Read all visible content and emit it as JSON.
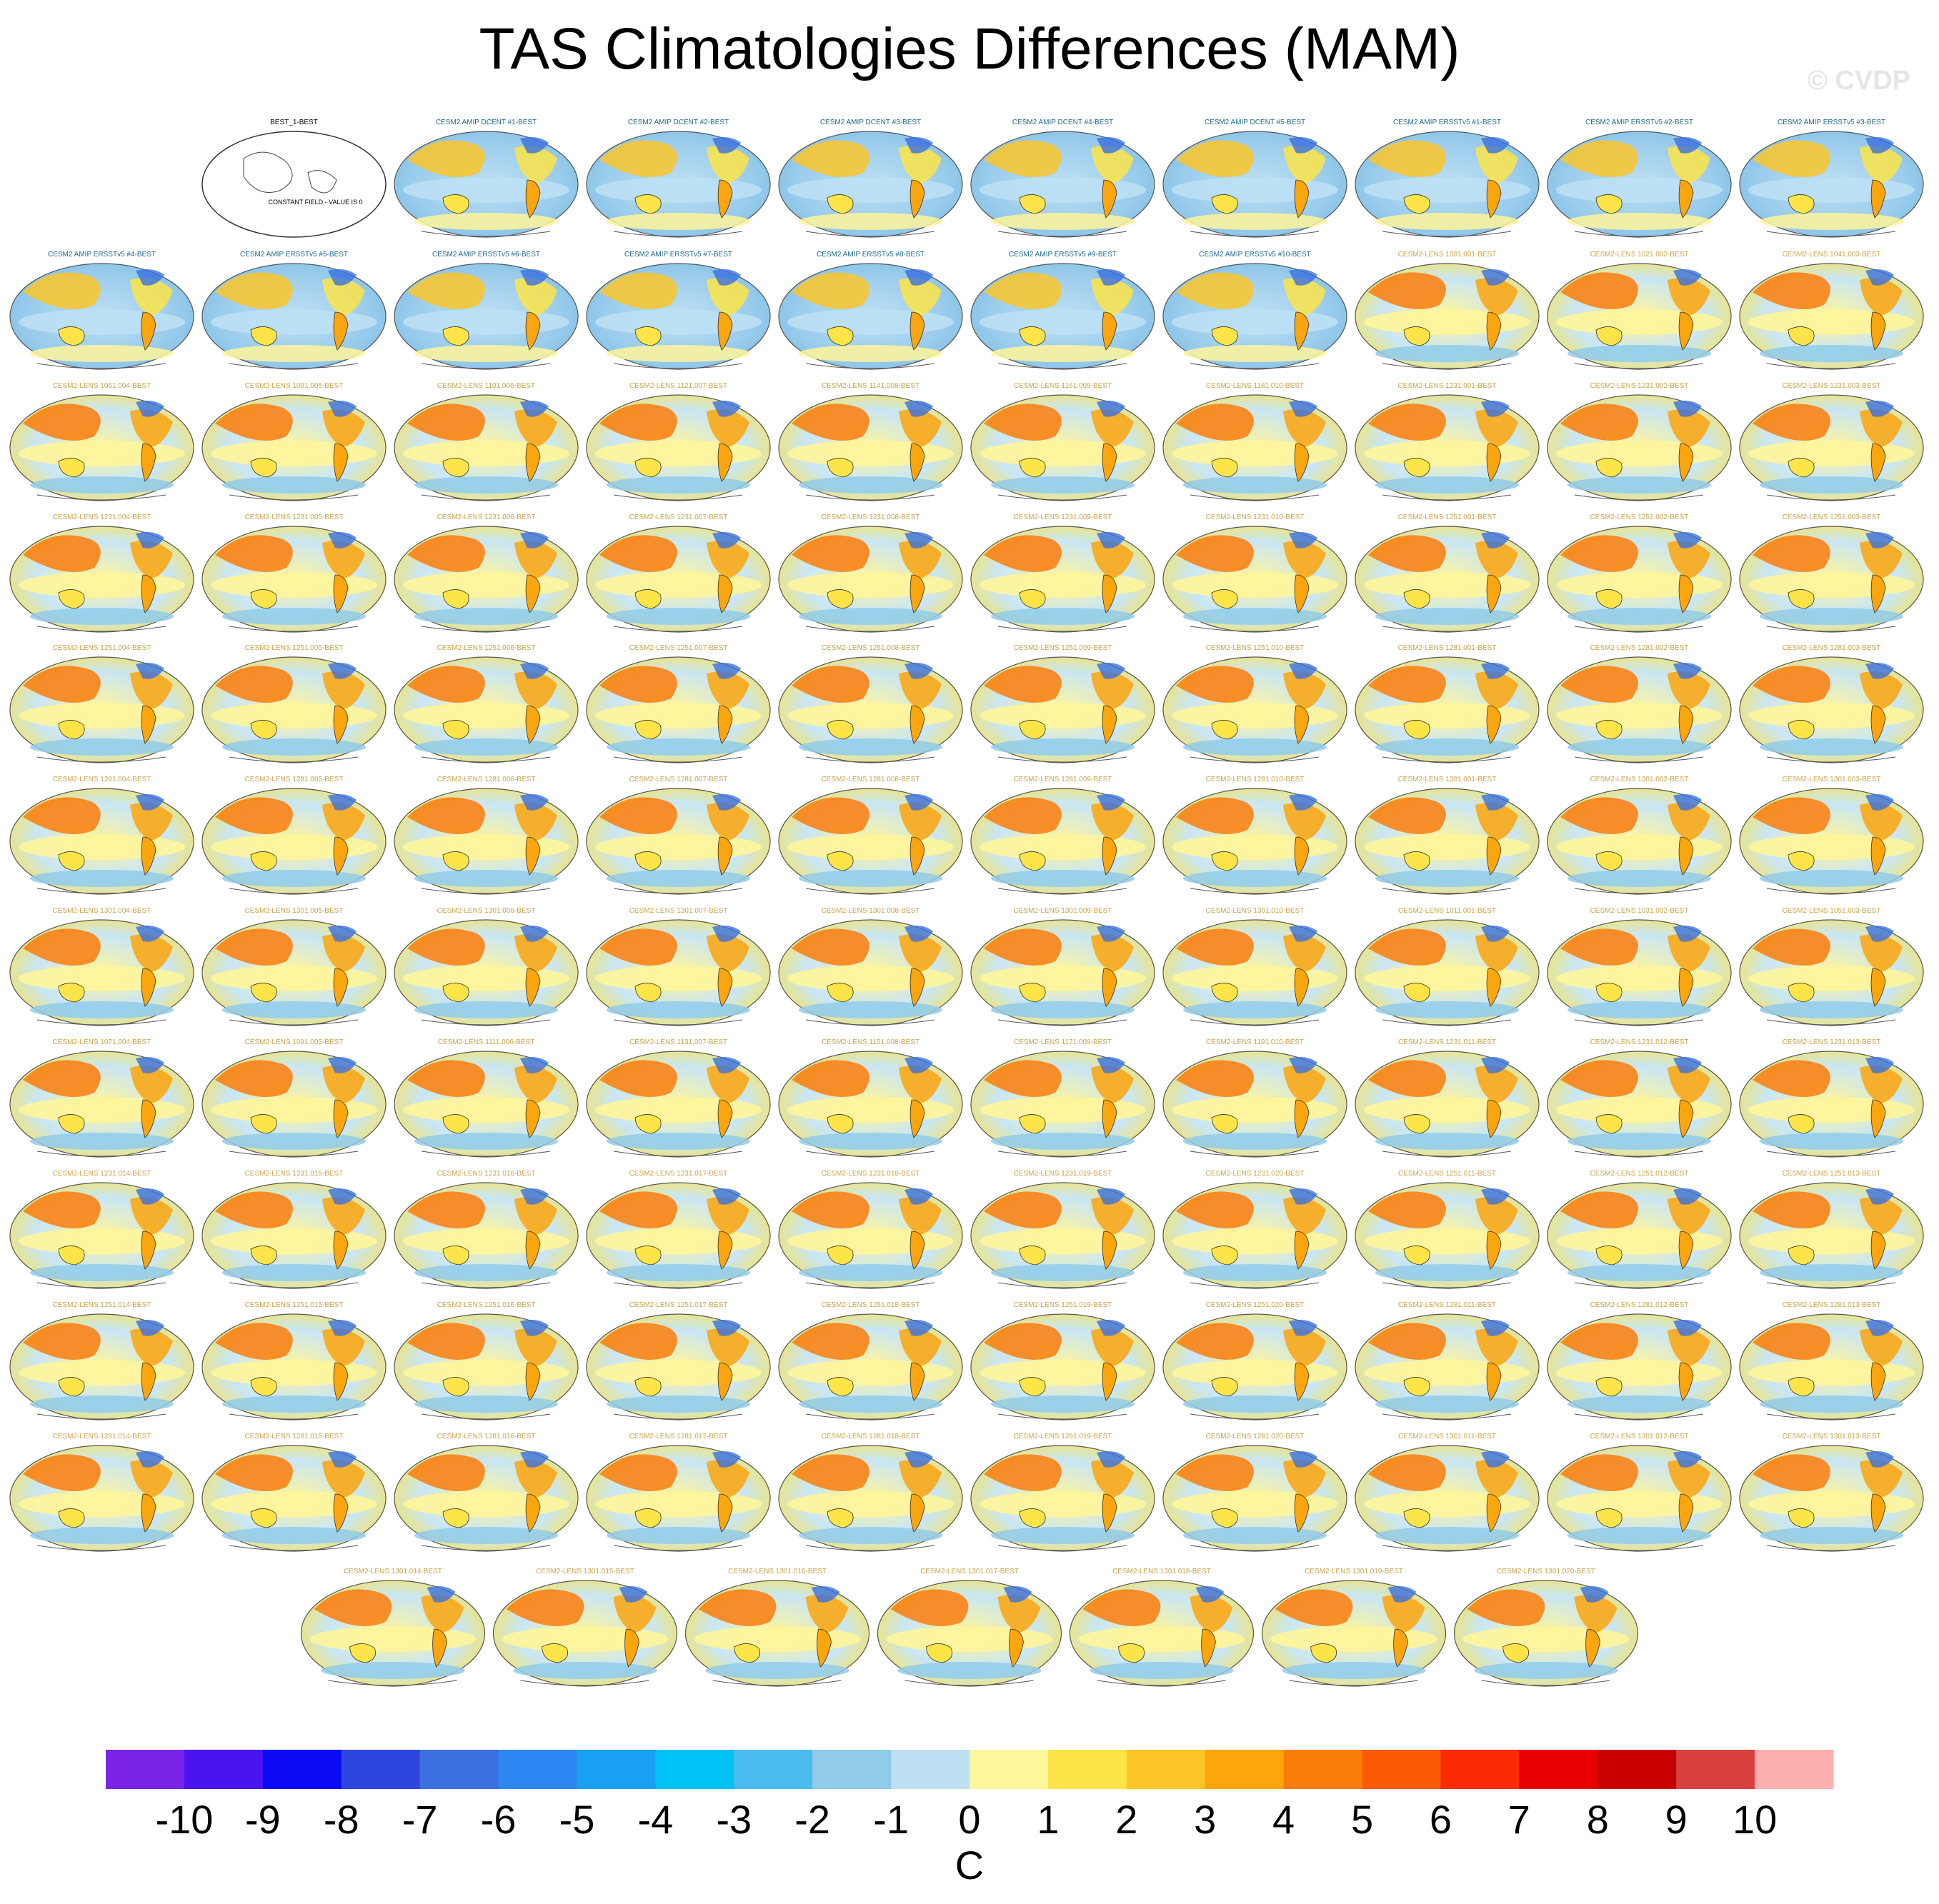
{
  "title": "TAS Climatologies Differences (MAM)",
  "copyright": "© CVDP",
  "chart_data": {
    "type": "heatmap",
    "title": "TAS Climatologies Differences (MAM)",
    "variable": "TAS",
    "season": "MAM",
    "units": "C",
    "colorbar": {
      "levels": [
        -10,
        -9,
        -8,
        -7,
        -6,
        -5,
        -4,
        -3,
        -2,
        -1,
        0,
        1,
        2,
        3,
        4,
        5,
        6,
        7,
        8,
        9,
        10
      ],
      "tick_labels": [
        "-10",
        "-9",
        "-8",
        "-7",
        "-6",
        "-5",
        "-4",
        "-3",
        "-2",
        "-1",
        "0",
        "1",
        "2",
        "3",
        "4",
        "5",
        "6",
        "7",
        "8",
        "9",
        "10"
      ],
      "colors": [
        "#7b24e8",
        "#4a14f0",
        "#0a0af5",
        "#2e46e0",
        "#3a70e0",
        "#2d86f2",
        "#1aa0f5",
        "#00c2f5",
        "#4cbcf0",
        "#90cbea",
        "#bde0f4",
        "#fff59a",
        "#fde448",
        "#fcc62a",
        "#fca50c",
        "#fb7d0a",
        "#fa5a04",
        "#fa2a02",
        "#e80000",
        "#c80000",
        "#d84040",
        "#fdb0b0"
      ],
      "label": "C"
    },
    "reference_panel": {
      "title": "BEST_1-BEST",
      "annotation": "CONSTANT FIELD - VALUE IS 0"
    },
    "panels": [
      "CESM2 AMIP DCENT #1-BEST",
      "CESM2 AMIP DCENT #2-BEST",
      "CESM2 AMIP DCENT #3-BEST",
      "CESM2 AMIP DCENT #4-BEST",
      "CESM2 AMIP DCENT #5-BEST",
      "CESM2 AMIP ERSSTv5 #1-BEST",
      "CESM2 AMIP ERSSTv5 #2-BEST",
      "CESM2 AMIP ERSSTv5 #3-BEST",
      "CESM2 AMIP ERSSTv5 #4-BEST",
      "CESM2 AMIP ERSSTv5 #5-BEST",
      "CESM2 AMIP ERSSTv5 #6-BEST",
      "CESM2 AMIP ERSSTv5 #7-BEST",
      "CESM2 AMIP ERSSTv5 #8-BEST",
      "CESM2 AMIP ERSSTv5 #9-BEST",
      "CESM2 AMIP ERSSTv5 #10-BEST",
      "CESM2-LENS 1001.001-BEST",
      "CESM2-LENS 1021.002-BEST",
      "CESM2-LENS 1041.003-BEST",
      "CESM2-LENS 1061.004-BEST",
      "CESM2-LENS 1081.005-BEST",
      "CESM2-LENS 1101.006-BEST",
      "CESM2-LENS 1121.007-BEST",
      "CESM2-LENS 1141.008-BEST",
      "CESM2-LENS 1161.009-BEST",
      "CESM2-LENS 1181.010-BEST",
      "CESM2-LENS 1231.001-BEST",
      "CESM2-LENS 1231.002-BEST",
      "CESM2-LENS 1231.003-BEST",
      "CESM2-LENS 1231.004-BEST",
      "CESM2-LENS 1231.005-BEST",
      "CESM2-LENS 1231.006-BEST",
      "CESM2-LENS 1231.007-BEST",
      "CESM2-LENS 1231.008-BEST",
      "CESM2-LENS 1231.009-BEST",
      "CESM2-LENS 1231.010-BEST",
      "CESM2-LENS 1251.001-BEST",
      "CESM2-LENS 1251.002-BEST",
      "CESM2-LENS 1251.003-BEST",
      "CESM2-LENS 1251.004-BEST",
      "CESM2-LENS 1251.005-BEST",
      "CESM2-LENS 1251.006-BEST",
      "CESM2-LENS 1251.007-BEST",
      "CESM2-LENS 1251.008-BEST",
      "CESM2-LENS 1251.009-BEST",
      "CESM2-LENS 1251.010-BEST",
      "CESM2-LENS 1281.001-BEST",
      "CESM2-LENS 1281.002-BEST",
      "CESM2-LENS 1281.003-BEST",
      "CESM2-LENS 1281.004-BEST",
      "CESM2-LENS 1281.005-BEST",
      "CESM2-LENS 1281.006-BEST",
      "CESM2-LENS 1281.007-BEST",
      "CESM2-LENS 1281.008-BEST",
      "CESM2-LENS 1281.009-BEST",
      "CESM2-LENS 1281.010-BEST",
      "CESM2-LENS 1301.001-BEST",
      "CESM2-LENS 1301.002-BEST",
      "CESM2-LENS 1301.003-BEST",
      "CESM2-LENS 1301.004-BEST",
      "CESM2-LENS 1301.005-BEST",
      "CESM2-LENS 1301.006-BEST",
      "CESM2-LENS 1301.007-BEST",
      "CESM2-LENS 1301.008-BEST",
      "CESM2-LENS 1301.009-BEST",
      "CESM2-LENS 1301.010-BEST",
      "CESM2-LENS 1011.001-BEST",
      "CESM2-LENS 1031.002-BEST",
      "CESM2-LENS 1051.003-BEST",
      "CESM2-LENS 1071.004-BEST",
      "CESM2-LENS 1091.005-BEST",
      "CESM2-LENS 1111.006-BEST",
      "CESM2-LENS 1131.007-BEST",
      "CESM2-LENS 1151.008-BEST",
      "CESM2-LENS 1171.009-BEST",
      "CESM2-LENS 1191.010-BEST",
      "CESM2-LENS 1231.011-BEST",
      "CESM2-LENS 1231.012-BEST",
      "CESM2-LENS 1231.013-BEST",
      "CESM2-LENS 1231.014-BEST",
      "CESM2-LENS 1231.015-BEST",
      "CESM2-LENS 1231.016-BEST",
      "CESM2-LENS 1231.017-BEST",
      "CESM2-LENS 1231.018-BEST",
      "CESM2-LENS 1231.019-BEST",
      "CESM2-LENS 1231.020-BEST",
      "CESM2-LENS 1251.011-BEST",
      "CESM2-LENS 1251.012-BEST",
      "CESM2-LENS 1251.013-BEST",
      "CESM2-LENS 1251.014-BEST",
      "CESM2-LENS 1251.015-BEST",
      "CESM2-LENS 1251.016-BEST",
      "CESM2-LENS 1251.017-BEST",
      "CESM2-LENS 1251.018-BEST",
      "CESM2-LENS 1251.019-BEST",
      "CESM2-LENS 1251.020-BEST",
      "CESM2-LENS 1281.011-BEST",
      "CESM2-LENS 1281.012-BEST",
      "CESM2-LENS 1281.013-BEST",
      "CESM2-LENS 1281.014-BEST",
      "CESM2-LENS 1281.015-BEST",
      "CESM2-LENS 1281.016-BEST",
      "CESM2-LENS 1281.017-BEST",
      "CESM2-LENS 1281.018-BEST",
      "CESM2-LENS 1281.019-BEST",
      "CESM2-LENS 1281.020-BEST",
      "CESM2-LENS 1301.011-BEST",
      "CESM2-LENS 1301.012-BEST",
      "CESM2-LENS 1301.013-BEST",
      "CESM2-LENS 1301.014-BEST",
      "CESM2-LENS 1301.015-BEST",
      "CESM2-LENS 1301.016-BEST",
      "CESM2-LENS 1301.017-BEST",
      "CESM2-LENS 1301.018-BEST",
      "CESM2-LENS 1301.019-BEST",
      "CESM2-LENS 1301.020-BEST"
    ]
  }
}
